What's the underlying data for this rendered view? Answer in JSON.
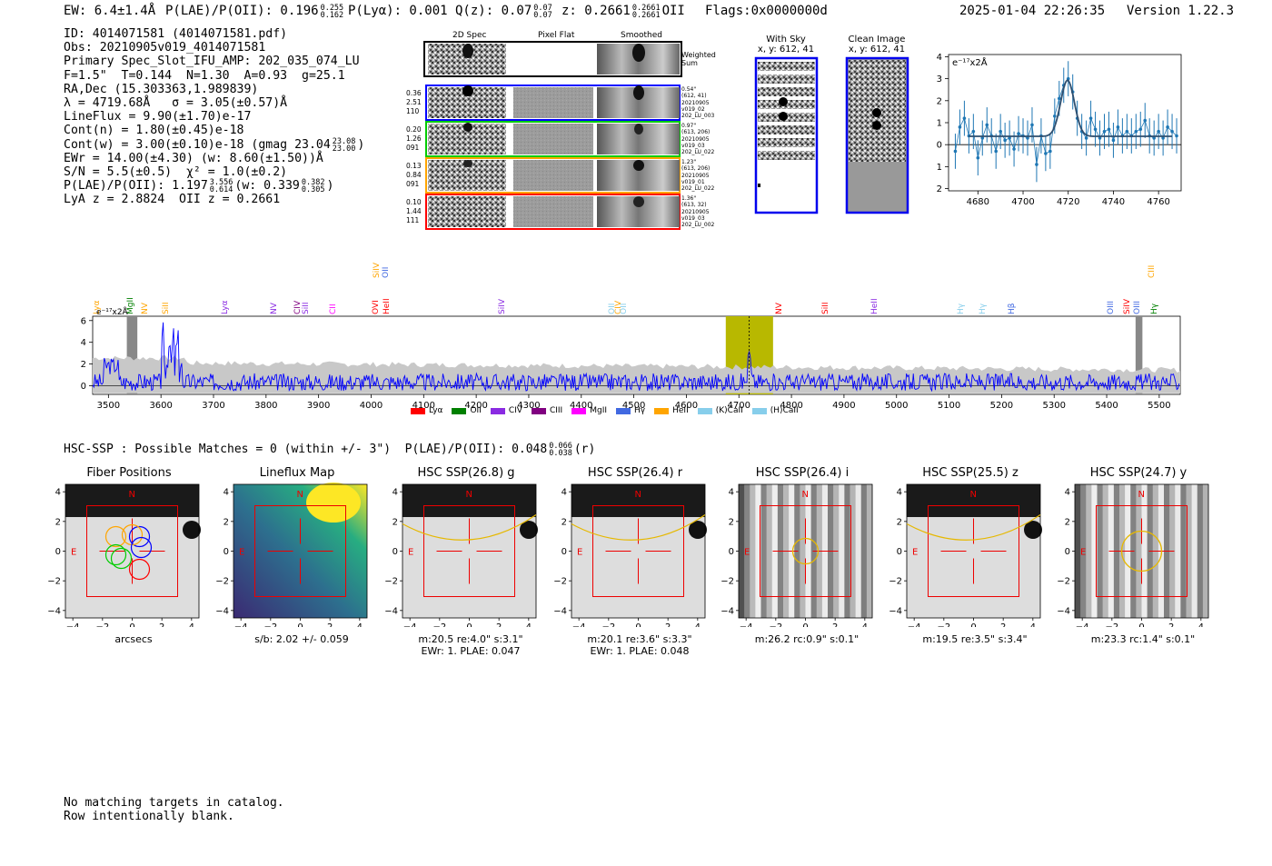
{
  "header": {
    "ew": "EW: 6.4±1.4Å",
    "plae": "P(LAE)/P(OII): 0.196",
    "plae_hi": "0.255",
    "plae_lo": "0.162",
    "plya": "P(Lyα): 0.001",
    "q": "Q(z): 0.07",
    "q_hi": "0.07",
    "q_lo": "0.07",
    "z": "z: 0.2661",
    "z_hi": "0.2661",
    "z_lo": "0.2661",
    "z_line": "OII",
    "flags": "Flags:0x0000000d",
    "datetime": "2025-01-04 22:26:35",
    "version": "Version 1.22.3"
  },
  "info": {
    "id": "ID: 4014071581 (4014071581.pdf)",
    "obs": "Obs: 20210905v019_4014071581",
    "primary": "Primary Spec_Slot_IFU_AMP: 202_035_074_LU",
    "f_line": "F=1.5\"  T=0.144  N=1.30  A=0.93  g=25.1",
    "radec": "RA,Dec (15.303363,1.989839)",
    "lambda": "λ = 4719.68Å   σ = 3.05(±0.57)Å",
    "lineflux": "LineFlux = 9.90(±1.70)e-17",
    "contn": "Cont(n) = 1.80(±0.45)e-18",
    "contw": "Cont(w) = 3.00(±0.10)e-18 (gmag 23.04",
    "gmag_hi": "23.08",
    "gmag_lo": "23.00",
    "ewr": "EWr = 14.00(±4.30) (w: 8.60(±1.50))Å",
    "sn": "S/N = 5.5(±0.5)  χ² = 1.0(±0.2)",
    "plae": "P(LAE)/P(OII): 1.197",
    "plae_hi": "3.556",
    "plae_lo": "0.614",
    "plae_w": "(w: 0.339",
    "plae_w_hi": "0.382",
    "plae_w_lo": "0.305",
    "z_line": "LyA z = 2.8824  OII z = 0.2661"
  },
  "cutouts": {
    "col_labels": [
      "2D Spec",
      "Pixel Flat",
      "Smoothed"
    ],
    "weighted_sum": "Weighted Sum",
    "rows": [
      {
        "left": [
          "0.36",
          "2.51",
          "110"
        ],
        "right": [
          "0.54\"",
          "(612, 41)",
          "20210905",
          "v019_02",
          "202_LU_003"
        ],
        "color": "#0000ff"
      },
      {
        "left": [
          "0.20",
          "1.26",
          "091"
        ],
        "right": [
          "0.97\"",
          "(613, 206)",
          "20210905",
          "v019_03",
          "202_LU_022"
        ],
        "color": "#00cc00"
      },
      {
        "left": [
          "0.13",
          "0.84",
          "091"
        ],
        "right": [
          "1.23\"",
          "(613, 206)",
          "20210905",
          "v019_01",
          "202_LU_022"
        ],
        "color": "#ffa500"
      },
      {
        "left": [
          "0.10",
          "1.44",
          "111"
        ],
        "right": [
          "1.36\"",
          "(613, 32)",
          "20210905",
          "v019_03",
          "202_LU_002"
        ],
        "color": "#ff0000"
      }
    ],
    "with_sky": "With Sky",
    "with_sky_xy": "x, y: 612, 41",
    "clean": "Clean Image",
    "clean_xy": "x, y: 612, 41"
  },
  "hsc_line": "HSC-SSP : Possible Matches = 0 (within +/- 3\")  P(LAE)/P(OII): 0.048",
  "hsc_hi": "0.066",
  "hsc_lo": "0.038",
  "hsc_band": "(r)",
  "panels": [
    {
      "title": "Fiber Positions",
      "cap1": "arcsecs",
      "cap2": ""
    },
    {
      "title": "Lineflux Map",
      "cap1": "s/b: 2.02 +/- 0.059",
      "cap2": ""
    },
    {
      "title": "HSC SSP(26.8) g",
      "cap1": "m:20.5  re:4.0\"  s:3.1\"",
      "cap2": "EWr: 1. PLAE: 0.047"
    },
    {
      "title": "HSC SSP(26.4) r",
      "cap1": "m:20.1  re:3.6\"  s:3.3\"",
      "cap2": "EWr: 1. PLAE: 0.048"
    },
    {
      "title": "HSC SSP(26.4) i",
      "cap1": "m:26.2 rc:0.9\"  s:0.1\"",
      "cap2": ""
    },
    {
      "title": "HSC SSP(25.5) z",
      "cap1": "m:19.5  re:3.5\"  s:3.4\"",
      "cap2": ""
    },
    {
      "title": "HSC SSP(24.7) y",
      "cap1": "m:23.3 rc:1.4\"  s:0.1\"",
      "cap2": ""
    }
  ],
  "footer": [
    "No matching targets in catalog.",
    "Row intentionally blank."
  ],
  "chart_data": [
    {
      "type": "line",
      "title": "",
      "ylabel": "e⁻¹⁷x2Å",
      "xlim": [
        4667,
        4770
      ],
      "ylim": [
        -2.1,
        4.1
      ],
      "xticks": [
        4680,
        4700,
        4720,
        4740,
        4760
      ],
      "yticks": [
        -2,
        -1,
        0,
        1,
        2,
        3,
        4
      ],
      "series": [
        {
          "name": "",
          "x": [
            4670,
            4672,
            4674,
            4676,
            4678,
            4680,
            4682,
            4684,
            4686,
            4688,
            4690,
            4692,
            4694,
            4696,
            4698,
            4700,
            4702,
            4704,
            4706,
            4708,
            4710,
            4712,
            4714,
            4716,
            4718,
            4720,
            4722,
            4724,
            4726,
            4728,
            4730,
            4732,
            4734,
            4736,
            4738,
            4740,
            4742,
            4744,
            4746,
            4748,
            4750,
            4752,
            4754,
            4756,
            4758,
            4760,
            4762,
            4764,
            4766,
            4768
          ],
          "y": [
            -0.3,
            0.8,
            1.2,
            0.4,
            0.6,
            -0.6,
            0.3,
            0.9,
            0.4,
            -0.3,
            0.6,
            0.2,
            0.3,
            -0.2,
            0.5,
            0.4,
            0.3,
            0.9,
            -0.9,
            0.4,
            -0.4,
            -0.3,
            1.3,
            2.1,
            2.7,
            3.0,
            2.4,
            1.2,
            0.6,
            0.3,
            1.2,
            0.7,
            0.3,
            0.6,
            0.7,
            0.2,
            0.8,
            0.4,
            0.6,
            0.4,
            0.6,
            0.7,
            1.1,
            0.4,
            0.3,
            0.6,
            0.3,
            0.8,
            0.6,
            0.4
          ],
          "err": [
            0.8,
            0.8,
            0.8,
            0.8,
            0.8,
            0.8,
            0.8,
            0.8,
            0.8,
            0.8,
            0.8,
            0.8,
            0.8,
            0.8,
            0.8,
            0.8,
            0.8,
            0.8,
            0.8,
            0.8,
            0.8,
            0.8,
            0.8,
            0.8,
            0.8,
            0.8,
            0.8,
            0.8,
            0.8,
            0.8,
            0.8,
            0.8,
            0.8,
            0.8,
            0.8,
            0.8,
            0.8,
            0.8,
            0.8,
            0.8,
            0.8,
            0.8,
            0.8,
            0.8,
            0.8,
            0.8,
            0.8,
            0.8,
            0.8,
            0.8
          ],
          "color": "#1f77b4"
        },
        {
          "name": "",
          "model": "gaussian",
          "center": 4719.68,
          "sigma": 3.05,
          "amp": 2.55,
          "cont": 0.38,
          "color": "#2f4f6f"
        }
      ]
    },
    {
      "type": "line",
      "title": "",
      "ylabel": "e⁻¹⁷x2Å",
      "xlim": [
        3470,
        5540
      ],
      "ylim": [
        -0.8,
        6.4
      ],
      "xticks": [
        3500,
        3600,
        3700,
        3800,
        3900,
        4000,
        4100,
        4200,
        4300,
        4400,
        4500,
        4600,
        4700,
        4800,
        4900,
        5000,
        5100,
        5200,
        5300,
        5400,
        5500
      ],
      "yticks": [
        0,
        2,
        4,
        6
      ],
      "highlight": [
        4675,
        4765
      ],
      "marker": 4719.68,
      "series": [
        {
          "name": "",
          "color": "#0000ff"
        }
      ],
      "legend": [
        {
          "name": "Lyα",
          "color": "#ff0000"
        },
        {
          "name": "OII",
          "color": "#008000"
        },
        {
          "name": "CIV",
          "color": "#8a2be2"
        },
        {
          "name": "CIII",
          "color": "#800080"
        },
        {
          "name": "MgII",
          "color": "#ff00ff"
        },
        {
          "name": "Hγ",
          "color": "#4169e1"
        },
        {
          "name": "HeII",
          "color": "#ffa500"
        },
        {
          "name": "(K)CaII",
          "color": "#87ceeb"
        },
        {
          "name": "(H)CaII",
          "color": "#87ceeb"
        }
      ],
      "lines": [
        {
          "name": "Lyα",
          "x": 3479,
          "color": "#ffa500",
          "row": 1
        },
        {
          "name": "MgII",
          "x": 3543,
          "color": "#008000",
          "row": 1
        },
        {
          "name": "NV",
          "x": 3570,
          "color": "#ffa500",
          "row": 1
        },
        {
          "name": "SiII",
          "x": 3610,
          "color": "#ffa500",
          "row": 1
        },
        {
          "name": "Lyα",
          "x": 3722,
          "color": "#8a2be2",
          "row": 1
        },
        {
          "name": "NV",
          "x": 3816,
          "color": "#8a2be2",
          "row": 1
        },
        {
          "name": "CIV",
          "x": 3860,
          "color": "#800080",
          "row": 1
        },
        {
          "name": "SiII",
          "x": 3877,
          "color": "#8a2be2",
          "row": 1
        },
        {
          "name": "CII",
          "x": 3929,
          "color": "#ff00ff",
          "row": 1
        },
        {
          "name": "SiIV",
          "x": 4012,
          "color": "#ffa500",
          "row": 0
        },
        {
          "name": "OII",
          "x": 4028,
          "color": "#4169e1",
          "row": 0
        },
        {
          "name": "OVI",
          "x": 4009,
          "color": "#ff0000",
          "row": 1
        },
        {
          "name": "HeII",
          "x": 4030,
          "color": "#ff0000",
          "row": 1
        },
        {
          "name": "SiIV",
          "x": 4250,
          "color": "#8a2be2",
          "row": 1
        },
        {
          "name": "OII",
          "x": 4460,
          "color": "#87ceeb",
          "row": 1
        },
        {
          "name": "CIV",
          "x": 4472,
          "color": "#ffa500",
          "row": 1
        },
        {
          "name": "OII",
          "x": 4481,
          "color": "#87ceeb",
          "row": 1
        },
        {
          "name": "NV",
          "x": 4778,
          "color": "#ff0000",
          "row": 1
        },
        {
          "name": "SiII",
          "x": 4865,
          "color": "#ff0000",
          "row": 1
        },
        {
          "name": "HeII",
          "x": 4959,
          "color": "#8a2be2",
          "row": 1
        },
        {
          "name": "Hγ",
          "x": 5123,
          "color": "#87ceeb",
          "row": 1
        },
        {
          "name": "Hγ",
          "x": 5165,
          "color": "#87ceeb",
          "row": 1
        },
        {
          "name": "Hβ",
          "x": 5220,
          "color": "#4169e1",
          "row": 1
        },
        {
          "name": "OIII",
          "x": 5408,
          "color": "#4169e1",
          "row": 1
        },
        {
          "name": "SiIV",
          "x": 5440,
          "color": "#ff0000",
          "row": 1
        },
        {
          "name": "OIII",
          "x": 5458,
          "color": "#4169e1",
          "row": 1
        },
        {
          "name": "CIII",
          "x": 5486,
          "color": "#ffa500",
          "row": 0
        },
        {
          "name": "Hγ",
          "x": 5492,
          "color": "#008000",
          "row": 1
        }
      ]
    }
  ]
}
